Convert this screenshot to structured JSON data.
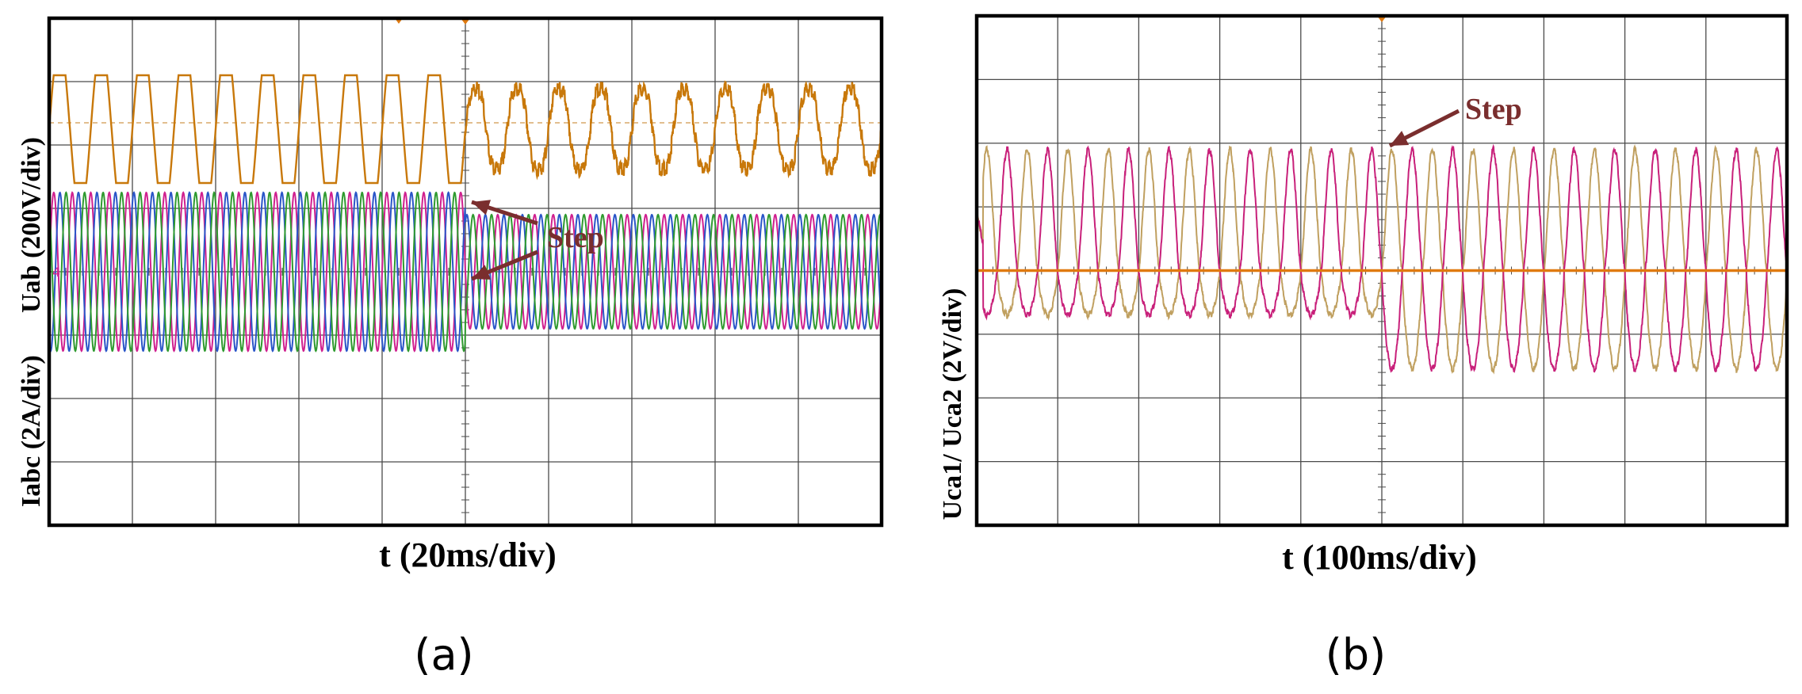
{
  "chart_data": [
    {
      "id": "a",
      "type": "line",
      "subfigure_label": "(a)",
      "ylabel_upper": "Uab (200V/div)",
      "ylabel_lower": "Iabc (2A/div)",
      "xlabel": "t (20ms/div)",
      "annotations": [
        {
          "text": "Step"
        }
      ],
      "grid": true,
      "divisions": {
        "x": 10,
        "y": 8
      },
      "step_div": 5,
      "channel_marker": "4",
      "colors": {
        "uab": "#c8780a",
        "ia": "#d0208f",
        "ib": "#2a55c8",
        "ic": "#2f9a2f",
        "arrow": "#7a2e2e",
        "ref": "#d9a86a"
      },
      "series": [
        {
          "name": "Uab",
          "center_div": 1.75,
          "amplitude_div_before": 0.85,
          "amplitude_div_after": 0.75,
          "cycles_per_div": 2.0
        },
        {
          "name": "Ia",
          "center_div": 4.0,
          "amplitude_div_before": 1.25,
          "amplitude_div_after": 0.9,
          "cycles_per_div": 4.5
        },
        {
          "name": "Ib",
          "center_div": 4.0,
          "amplitude_div_before": 1.25,
          "amplitude_div_after": 0.9,
          "cycles_per_div": 4.5
        },
        {
          "name": "Ic",
          "center_div": 4.0,
          "amplitude_div_before": 1.25,
          "amplitude_div_after": 0.9,
          "cycles_per_div": 4.5
        }
      ]
    },
    {
      "id": "b",
      "type": "line",
      "subfigure_label": "(b)",
      "ylabel": "Uca1/ Uca2 (2V/div)",
      "xlabel": "t (100ms/div)",
      "annotations": [
        {
          "text": "Step"
        }
      ],
      "grid": true,
      "divisions": {
        "x": 10,
        "y": 8
      },
      "step_div": 5,
      "colors": {
        "uca1": "#c0a060",
        "uca2": "#c8207a",
        "zero": "#e07a10",
        "arrow": "#7a2e2e"
      },
      "series": [
        {
          "name": "Uca1",
          "center_div": 4.0,
          "cycles_per_div": 2.0,
          "peak_div": 1.9,
          "trough_div_before": 0.7,
          "trough_div_after": 1.55
        },
        {
          "name": "Uca2",
          "center_div": 4.0,
          "cycles_per_div": 2.0,
          "peak_div": 1.9,
          "trough_div_before": 0.7,
          "trough_div_after": 1.55
        }
      ]
    }
  ]
}
